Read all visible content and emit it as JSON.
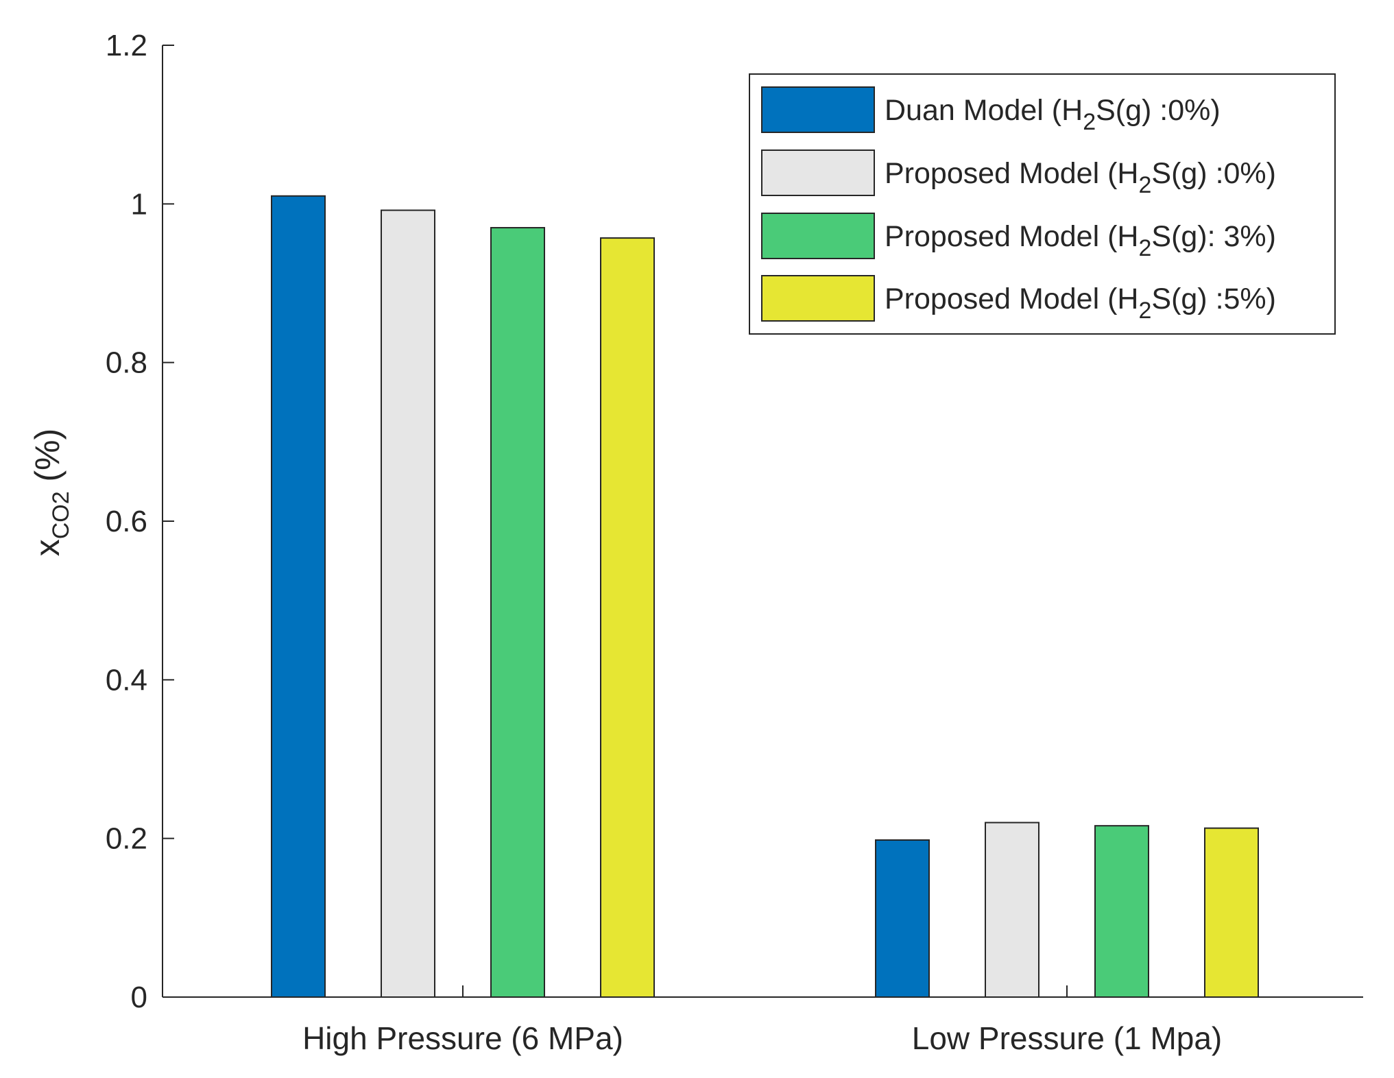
{
  "chart_data": {
    "type": "bar",
    "title": "",
    "xlabel": "",
    "ylabel": {
      "base": "x",
      "subscript": "CO2",
      "suffix": " (%)"
    },
    "ylim": [
      0,
      1.2
    ],
    "yticks": [
      "0",
      "0.2",
      "0.4",
      "0.6",
      "0.8",
      "1",
      "1.2"
    ],
    "ytick_values": [
      0,
      0.2,
      0.4,
      0.6,
      0.8,
      1.0,
      1.2
    ],
    "categories": [
      "High Pressure (6 MPa)",
      "Low Pressure (1 Mpa)"
    ],
    "legend_position": "top-right",
    "series": [
      {
        "name": "Duan Model (H2S(g) :0%)",
        "label": {
          "pre": "Duan Model (H",
          "sub": "2",
          "post": "S(g) :0%)"
        },
        "color": "#0072bd",
        "values": [
          1.01,
          0.198
        ]
      },
      {
        "name": "Proposed Model (H2S(g) :0%)",
        "label": {
          "pre": "Proposed Model (H",
          "sub": "2",
          "post": "S(g) :0%)"
        },
        "color": "#e6e6e6",
        "values": [
          0.992,
          0.22
        ]
      },
      {
        "name": "Proposed Model (H2S(g): 3%)",
        "label": {
          "pre": "Proposed Model (H",
          "sub": "2",
          "post": "S(g): 3%)"
        },
        "color": "#4acb78",
        "values": [
          0.97,
          0.216
        ]
      },
      {
        "name": "Proposed Model (H2S(g) :5%)",
        "label": {
          "pre": "Proposed Model (H",
          "sub": "2",
          "post": "S(g) :5%)"
        },
        "color": "#e6e633",
        "values": [
          0.957,
          0.213
        ]
      }
    ]
  }
}
